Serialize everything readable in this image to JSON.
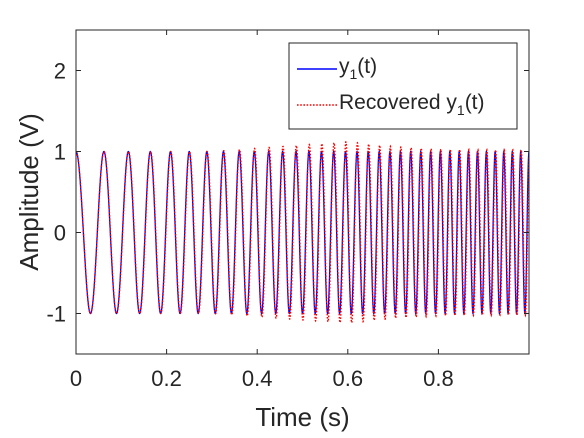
{
  "chart_data": {
    "type": "line",
    "title": "",
    "xlabel": "Time (s)",
    "ylabel": "Amplitude (V)",
    "xlim": [
      0,
      1
    ],
    "ylim": [
      -1.5,
      2.5
    ],
    "xticks": [
      0,
      0.2,
      0.4,
      0.6,
      0.8
    ],
    "xtick_labels": [
      "0",
      "0.2",
      "0.4",
      "0.6",
      "0.8"
    ],
    "yticks": [
      -1,
      0,
      1,
      2
    ],
    "ytick_labels": [
      "-1",
      "0",
      "1",
      "2"
    ],
    "grid": false,
    "box": true,
    "legend": {
      "location": "top-right",
      "entries": [
        {
          "base": "y",
          "sub": "1",
          "suffix": "(t)"
        },
        {
          "base": "Recovered y",
          "sub": "1",
          "suffix": "(t)"
        }
      ]
    },
    "signal": {
      "description_values": {
        "form": "chirp",
        "amplitude": 1.0,
        "start_frequency_hz": 15,
        "end_frequency_hz": 55
      }
    },
    "series": [
      {
        "name": "y1(t)",
        "color": "#0000ff",
        "line_style": "solid",
        "recovered_error_envelope": [],
        "amplitude": 1.0
      },
      {
        "name": "Recovered y1(t)",
        "color": "#ff0000",
        "line_style": "dotted",
        "recovered_error_envelope": [
          {
            "t": 0.0,
            "extra_amplitude": 0.0
          },
          {
            "t": 0.3,
            "extra_amplitude": 0.0
          },
          {
            "t": 0.4,
            "extra_amplitude": 0.04
          },
          {
            "t": 0.5,
            "extra_amplitude": 0.08
          },
          {
            "t": 0.6,
            "extra_amplitude": 0.12
          },
          {
            "t": 0.7,
            "extra_amplitude": 0.06
          },
          {
            "t": 0.8,
            "extra_amplitude": 0.03
          },
          {
            "t": 0.9,
            "extra_amplitude": 0.02
          },
          {
            "t": 1.0,
            "extra_amplitude": 0.02
          }
        ],
        "amplitude": 1.0
      }
    ]
  }
}
